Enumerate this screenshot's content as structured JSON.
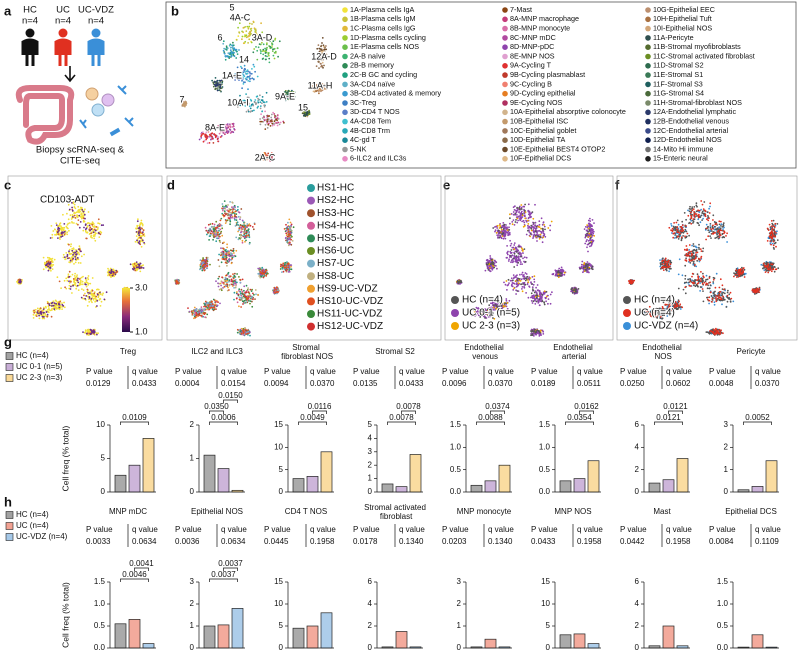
{
  "panel_a": {
    "label": "a",
    "groups": [
      {
        "name": "HC",
        "n": "n=4",
        "color": "#111111"
      },
      {
        "name": "UC",
        "n": "n=4",
        "color": "#e03020"
      },
      {
        "name": "UC-VDZ",
        "n": "n=4",
        "color": "#3a8fd8"
      }
    ],
    "caption": [
      "Biopsy scRNA-seq &",
      "CITE-seq"
    ]
  },
  "panel_b": {
    "label": "b",
    "cluster_labels": [
      "5",
      "4A-C",
      "6",
      "3A-D",
      "14",
      "1A-E",
      "10A-I",
      "9A-E",
      "8A-E",
      "7",
      "2A-C",
      "12A-D",
      "11A-H",
      "15"
    ],
    "legend_columns": [
      [
        {
          "name": "1A-Plasma cells IgA",
          "color": "#f2e33a"
        },
        {
          "name": "1B-Plasma cells IgM",
          "color": "#c8c23a"
        },
        {
          "name": "1C-Plasma cells IgG",
          "color": "#e0b93b"
        },
        {
          "name": "1D-Plasma cells cycling",
          "color": "#9acd32"
        },
        {
          "name": "1E-Plasma cells NOS",
          "color": "#6bbf4b"
        },
        {
          "name": "2A-B naïve",
          "color": "#3cb371"
        },
        {
          "name": "2B-B memory",
          "color": "#2e8b57"
        },
        {
          "name": "2C-B GC and cycling",
          "color": "#20a080"
        },
        {
          "name": "3A-CD4 naïve",
          "color": "#5fb0c8"
        },
        {
          "name": "3B-CD4 activated & memory",
          "color": "#3a9bd0"
        },
        {
          "name": "3C-Treg",
          "color": "#3d7fc4"
        },
        {
          "name": "3D-CD4 T NOS",
          "color": "#5a7ec8"
        },
        {
          "name": "4A-CD8 Tem",
          "color": "#40c0d0"
        },
        {
          "name": "4B-CD8 Trm",
          "color": "#28a8b8"
        },
        {
          "name": "4C-gd T",
          "color": "#1a8898"
        },
        {
          "name": "5-NK",
          "color": "#9a9a9a"
        },
        {
          "name": "6-ILC2 and ILC3s",
          "color": "#e78ac3"
        }
      ],
      [
        {
          "name": "7-Mast",
          "color": "#8b4513"
        },
        {
          "name": "8A-MNP macrophage",
          "color": "#c43c7a"
        },
        {
          "name": "8B-MNP monocyte",
          "color": "#d86fa8"
        },
        {
          "name": "8C-MNP mDC",
          "color": "#b04aa0"
        },
        {
          "name": "8D-MNP-pDC",
          "color": "#8e44ad"
        },
        {
          "name": "8E-MNP NOS",
          "color": "#e0a0d0"
        },
        {
          "name": "9A-Cycling T",
          "color": "#e03030"
        },
        {
          "name": "9B-Cycling plasmablast",
          "color": "#c0392b"
        },
        {
          "name": "9C-Cycling B",
          "color": "#f08070"
        },
        {
          "name": "9D-Cycling epithelial",
          "color": "#e67e22"
        },
        {
          "name": "9E-Cycling NOS",
          "color": "#b03060"
        },
        {
          "name": "10A-Epithelial absorptive colonocyte",
          "color": "#d2b48c"
        },
        {
          "name": "10B-Epithelial ISC",
          "color": "#c49a6c"
        },
        {
          "name": "10C-Epithelial goblet",
          "color": "#a0785a"
        },
        {
          "name": "10D-Epithelial TA",
          "color": "#8b6b4a"
        },
        {
          "name": "10E-Epithelial BEST4 OTOP2",
          "color": "#6b4a2a"
        },
        {
          "name": "10F-Epithelial DCS",
          "color": "#deb887"
        }
      ],
      [
        {
          "name": "10G-Epithelial EEC",
          "color": "#bc8f6f"
        },
        {
          "name": "10H-Epithelial Tuft",
          "color": "#a97142"
        },
        {
          "name": "10I-Epithelial NOS",
          "color": "#d2a679"
        },
        {
          "name": "11A-Pericyte",
          "color": "#2f4f4f"
        },
        {
          "name": "11B-Stromal myofibroblasts",
          "color": "#556b2f"
        },
        {
          "name": "11C-Stromal activated fibroblast",
          "color": "#6b8e23"
        },
        {
          "name": "11D-Stromal S2",
          "color": "#2e6b4f"
        },
        {
          "name": "11E-Stromal S1",
          "color": "#3b7a57"
        },
        {
          "name": "11F-Stromal S3",
          "color": "#1f5f5f"
        },
        {
          "name": "11G-Stromal S4",
          "color": "#4a6a3a"
        },
        {
          "name": "11H-Stromal-fibroblast NOS",
          "color": "#7a8a6a"
        },
        {
          "name": "12A-Endothelial lymphatic",
          "color": "#2b3a6b"
        },
        {
          "name": "12B-Endothelial venous",
          "color": "#1f2f5f"
        },
        {
          "name": "12C-Endothelial arterial",
          "color": "#3a4a8a"
        },
        {
          "name": "12D-Endothelial NOS",
          "color": "#0f1f4f"
        },
        {
          "name": "14-Mito Hi immune",
          "color": "#707070"
        },
        {
          "name": "15-Enteric neural",
          "color": "#202020"
        }
      ]
    ]
  },
  "panel_c": {
    "label": "c",
    "title": "CD103-ADT",
    "colorbar_lim": [
      1,
      3
    ],
    "colorbar_ticks": [
      {
        "value": 3,
        "label": "3.0"
      },
      {
        "value": 1,
        "label": "1.0"
      }
    ]
  },
  "panel_d": {
    "label": "d",
    "legend": [
      {
        "name": "HS1-HC",
        "color": "#2a9d9d"
      },
      {
        "name": "HS2-HC",
        "color": "#9b59b6"
      },
      {
        "name": "HS3-HC",
        "color": "#a0522d"
      },
      {
        "name": "HS4-HC",
        "color": "#d35f9a"
      },
      {
        "name": "HS5-UC",
        "color": "#2e8b57"
      },
      {
        "name": "HS6-UC",
        "color": "#6b8e23"
      },
      {
        "name": "HS7-UC",
        "color": "#7bb0c8"
      },
      {
        "name": "HS8-UC",
        "color": "#c0b080"
      },
      {
        "name": "HS9-UC-VDZ",
        "color": "#f0a030"
      },
      {
        "name": "HS10-UC-VDZ",
        "color": "#e05020"
      },
      {
        "name": "HS11-UC-VDZ",
        "color": "#3a8a3a"
      },
      {
        "name": "HS12-UC-VDZ",
        "color": "#d03030"
      }
    ]
  },
  "panel_e": {
    "label": "e",
    "legend": [
      {
        "name": "HC (n=4)",
        "color": "#555555"
      },
      {
        "name": "UC 0-1 (n=5)",
        "color": "#8e44ad"
      },
      {
        "name": "UC 2-3 (n=3)",
        "color": "#f0a500"
      }
    ]
  },
  "panel_f": {
    "label": "f",
    "legend": [
      {
        "name": "HC (n=4)",
        "color": "#555555"
      },
      {
        "name": "UC (n=4)",
        "color": "#e03020"
      },
      {
        "name": "UC-VDZ (n=4)",
        "color": "#3a8fd8"
      }
    ]
  },
  "panel_g": {
    "label": "g",
    "y_label": "Cell freq (% total)",
    "p_header": "P value",
    "q_header": "q value",
    "legend": [
      {
        "name": "HC (n=4)",
        "color": "#555555"
      },
      {
        "name": "UC 0-1 (n=5)",
        "color": "#9b6bb5"
      },
      {
        "name": "UC 2-3 (n=3)",
        "color": "#f5b942"
      }
    ],
    "charts": [
      {
        "title": "Treg",
        "p": "0.0129",
        "q": "0.0433",
        "comparisons": [
          "0.0109"
        ],
        "values": [
          2.5,
          4,
          8
        ],
        "ylim": [
          0,
          10
        ],
        "yticks": [
          0,
          5,
          10
        ]
      },
      {
        "title": "ILC2 and ILC3",
        "p": "0.0004",
        "q": "0.0154",
        "comparisons": [
          "0.0006",
          "0.0350",
          "0.0150"
        ],
        "values": [
          1.1,
          0.7,
          0.05
        ],
        "ylim": [
          0,
          2
        ],
        "yticks": [
          0,
          1,
          2
        ]
      },
      {
        "title": "Stromal fibroblast NOS",
        "p": "0.0094",
        "q": "0.0370",
        "comparisons": [
          "0.0049",
          "0.0116"
        ],
        "values": [
          3,
          3.5,
          9
        ],
        "ylim": [
          0,
          15
        ],
        "yticks": [
          0,
          5,
          10,
          15
        ]
      },
      {
        "title": "Stromal S2",
        "p": "0.0135",
        "q": "0.0433",
        "comparisons": [
          "0.0078",
          "0.0078"
        ],
        "values": [
          0.6,
          0.4,
          2.8
        ],
        "ylim": [
          0,
          5
        ],
        "yticks": [
          0,
          1,
          2,
          3,
          4,
          5
        ]
      },
      {
        "title": "Endothelial venous",
        "p": "0.0096",
        "q": "0.0370",
        "comparisons": [
          "0.0088",
          "0.0374"
        ],
        "values": [
          0.15,
          0.25,
          0.6
        ],
        "ylim": [
          0,
          1.5
        ],
        "yticks": [
          {
            "value": 0,
            "label": "0.0"
          },
          0.5,
          {
            "value": 1,
            "label": "1.0"
          },
          1.5
        ]
      },
      {
        "title": "Endothelial arterial",
        "p": "0.0189",
        "q": "0.0511",
        "comparisons": [
          "0.0354",
          "0.0162"
        ],
        "values": [
          0.25,
          0.3,
          0.7
        ],
        "ylim": [
          0,
          1.5
        ],
        "yticks": [
          {
            "value": 0,
            "label": "0.0"
          },
          0.5,
          {
            "value": 1,
            "label": "1.0"
          },
          1.5
        ]
      },
      {
        "title": "Endothelial NOS",
        "p": "0.0250",
        "q": "0.0602",
        "comparisons": [
          "0.0121",
          "0.0121"
        ],
        "values": [
          0.8,
          1.1,
          3
        ],
        "ylim": [
          0,
          6
        ],
        "yticks": [
          0,
          2,
          4,
          6
        ]
      },
      {
        "title": "Pericyte",
        "p": "0.0048",
        "q": "0.0370",
        "comparisons": [
          "0.0052"
        ],
        "values": [
          0.1,
          0.25,
          1.4
        ],
        "ylim": [
          0,
          3
        ],
        "yticks": [
          0,
          1,
          2,
          3
        ]
      }
    ]
  },
  "panel_h": {
    "label": "h",
    "y_label": "Cell freq (% total)",
    "p_header": "P value",
    "q_header": "q value",
    "legend": [
      {
        "name": "HC (n=4)",
        "color": "#555555"
      },
      {
        "name": "UC (n=4)",
        "color": "#e8553a"
      },
      {
        "name": "UC-VDZ (n=4)",
        "color": "#5b9bd5"
      }
    ],
    "charts": [
      {
        "title": "MNP mDC",
        "p": "0.0033",
        "q": "0.0634",
        "comparisons": [
          "0.0046",
          "0.0041"
        ],
        "values": [
          0.55,
          0.65,
          0.1
        ],
        "ylim": [
          0,
          1.5
        ],
        "yticks": [
          {
            "value": 0,
            "label": "0.0"
          },
          0.5,
          {
            "value": 1,
            "label": "1.0"
          },
          1.5
        ]
      },
      {
        "title": "Epithelial NOS",
        "p": "0.0036",
        "q": "0.0634",
        "comparisons": [
          "0.0037",
          "0.0037"
        ],
        "values": [
          1,
          1.05,
          1.8
        ],
        "ylim": [
          0,
          3
        ],
        "yticks": [
          0,
          1,
          2,
          3
        ]
      },
      {
        "title": "CD4 T NOS",
        "p": "0.0445",
        "q": "0.1958",
        "comparisons": [],
        "values": [
          4.5,
          5,
          8
        ],
        "ylim": [
          0,
          15
        ],
        "yticks": [
          0,
          5,
          10,
          15
        ]
      },
      {
        "title": "Stromal activated fibroblast",
        "p": "0.0178",
        "q": "0.1340",
        "comparisons": [],
        "values": [
          0.1,
          1.5,
          0.1
        ],
        "ylim": [
          0,
          6
        ],
        "yticks": [
          0,
          2,
          4,
          6
        ]
      },
      {
        "title": "MNP monocyte",
        "p": "0.0203",
        "q": "0.1340",
        "comparisons": [],
        "values": [
          0.05,
          0.4,
          0.05
        ],
        "ylim": [
          0,
          3
        ],
        "yticks": [
          0,
          1,
          2,
          3
        ]
      },
      {
        "title": "MNP NOS",
        "p": "0.0433",
        "q": "0.1958",
        "comparisons": [],
        "values": [
          3,
          3.2,
          1
        ],
        "ylim": [
          0,
          15
        ],
        "yticks": [
          0,
          5,
          10,
          15
        ]
      },
      {
        "title": "Mast",
        "p": "0.0442",
        "q": "0.1958",
        "comparisons": [],
        "values": [
          0.2,
          2,
          0.2
        ],
        "ylim": [
          0,
          6
        ],
        "yticks": [
          0,
          2,
          4,
          6
        ]
      },
      {
        "title": "Epithelial DCS",
        "p": "0.0084",
        "q": "0.1109",
        "comparisons": [],
        "values": [
          0.02,
          0.3,
          0.02
        ],
        "ylim": [
          0,
          1.5
        ],
        "yticks": [
          {
            "value": 0,
            "label": "0.0"
          },
          0.5,
          {
            "value": 1,
            "label": "1.0"
          },
          1.5
        ]
      }
    ]
  }
}
